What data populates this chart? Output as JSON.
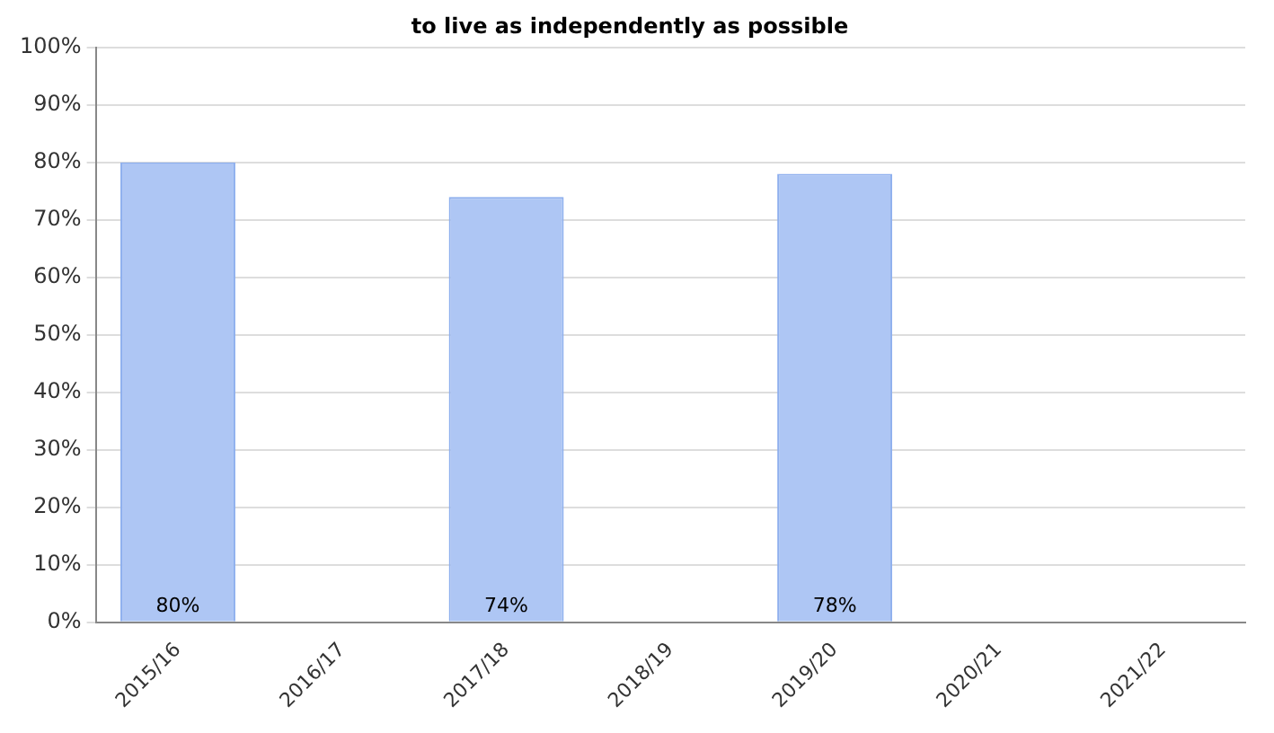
{
  "chart_data": {
    "type": "bar",
    "title": "to live as independently as possible",
    "categories": [
      "2015/16",
      "2016/17",
      "2017/18",
      "2018/19",
      "2019/20",
      "2020/21",
      "2021/22"
    ],
    "series": [
      {
        "color": "#aec6f4",
        "values": [
          80,
          null,
          74,
          null,
          78,
          null,
          null
        ]
      }
    ],
    "ylim": [
      0,
      100
    ],
    "yticks": [
      {
        "value": 0,
        "label": "0%"
      },
      {
        "value": 10,
        "label": "10%"
      },
      {
        "value": 20,
        "label": "20%"
      },
      {
        "value": 30,
        "label": "30%"
      },
      {
        "value": 40,
        "label": "40%"
      },
      {
        "value": 50,
        "label": "50%"
      },
      {
        "value": 60,
        "label": "60%"
      },
      {
        "value": 70,
        "label": "70%"
      },
      {
        "value": 80,
        "label": "80%"
      },
      {
        "value": 90,
        "label": "90%"
      },
      {
        "value": 100,
        "label": "100%"
      }
    ],
    "value_labels": [
      "80%",
      null,
      "74%",
      null,
      "78%",
      null,
      null
    ],
    "grid": "y",
    "legend": false
  }
}
